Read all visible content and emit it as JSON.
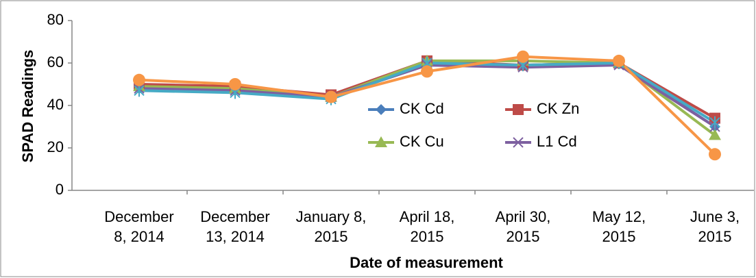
{
  "chart_data": {
    "type": "line",
    "x_label": "Date of measurement",
    "y_label": "SPAD Readings",
    "categories": [
      "December 8, 2014",
      "December 13, 2014",
      "January 8, 2015",
      "April 18, 2015",
      "April 30, 2015",
      "May 12, 2015",
      "June 3, 2015"
    ],
    "series": [
      {
        "name": "CK Cd",
        "color": "#4a7ebb",
        "marker": "diamond",
        "values": [
          48,
          47,
          44,
          59,
          59,
          60,
          30
        ]
      },
      {
        "name": "CK Zn",
        "color": "#be4b48",
        "marker": "square",
        "values": [
          50,
          49,
          45,
          61,
          59,
          60,
          34
        ]
      },
      {
        "name": "CK Cu",
        "color": "#98b954",
        "marker": "triangle",
        "values": [
          49,
          48,
          44,
          61,
          61,
          60,
          26
        ]
      },
      {
        "name": "L1 Cd",
        "color": "#7d60a0",
        "marker": "x",
        "values": [
          48,
          47,
          44,
          59,
          58,
          59,
          30
        ]
      },
      {
        "color": "#46aac5",
        "marker": "star",
        "values": [
          47,
          46,
          43,
          60,
          59,
          60,
          32
        ]
      },
      {
        "color": "#f79646",
        "marker": "circle",
        "values": [
          52,
          50,
          44,
          56,
          63,
          61,
          17
        ]
      }
    ],
    "ylim": [
      0,
      80
    ],
    "yticks": [
      0,
      20,
      40,
      60,
      80
    ],
    "grid": false
  }
}
